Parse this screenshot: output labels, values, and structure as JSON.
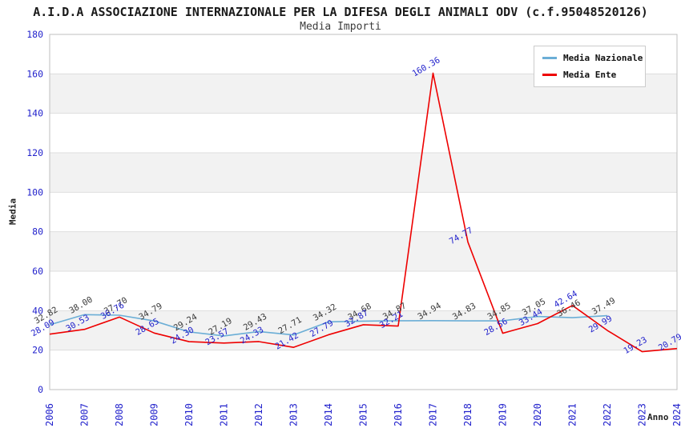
{
  "title": "A.I.D.A ASSOCIAZIONE INTERNAZIONALE PER LA DIFESA DEGLI ANIMALI ODV (c.f.95048520126)",
  "subtitle": "Media Importi",
  "legend": {
    "items": [
      {
        "label": "Media Nazionale",
        "color": "#6BAED6"
      },
      {
        "label": "Media Ente",
        "color": "#EE0000"
      }
    ]
  },
  "axes": {
    "y_label": "Media",
    "x_label": "Anno",
    "y_ticks": [
      0,
      20,
      40,
      60,
      80,
      100,
      120,
      140,
      160,
      180
    ],
    "tick_color": "#2222CC"
  },
  "chart_data": {
    "type": "line",
    "title": "Media Importi",
    "xlabel": "Anno",
    "ylabel": "Media",
    "ylim": [
      0,
      180
    ],
    "grid": true,
    "legend_position": "top-right",
    "band_color": "#F2F2F2",
    "grid_color": "#DEDEDE",
    "border_color": "#BFBFBF",
    "x": [
      2006,
      2007,
      2008,
      2009,
      2010,
      2011,
      2012,
      2013,
      2014,
      2015,
      2016,
      2017,
      2018,
      2019,
      2020,
      2021,
      2022,
      2023,
      2024
    ],
    "series": [
      {
        "name": "Media Nazionale",
        "color": "#6BAED6",
        "label_color": "#3A3A3A",
        "values": [
          32.82,
          38.0,
          37.7,
          34.79,
          29.24,
          27.19,
          29.43,
          27.71,
          34.32,
          34.68,
          34.87,
          34.94,
          34.83,
          34.85,
          37.05,
          36.46,
          37.49,
          null,
          null
        ]
      },
      {
        "name": "Media Ente",
        "color": "#EE0000",
        "label_color": "#2222CC",
        "values": [
          28.09,
          30.53,
          36.76,
          28.65,
          24.3,
          23.57,
          24.33,
          21.42,
          27.79,
          32.87,
          32.21,
          160.36,
          74.77,
          28.56,
          33.44,
          42.64,
          29.99,
          19.23,
          20.79
        ]
      }
    ]
  }
}
